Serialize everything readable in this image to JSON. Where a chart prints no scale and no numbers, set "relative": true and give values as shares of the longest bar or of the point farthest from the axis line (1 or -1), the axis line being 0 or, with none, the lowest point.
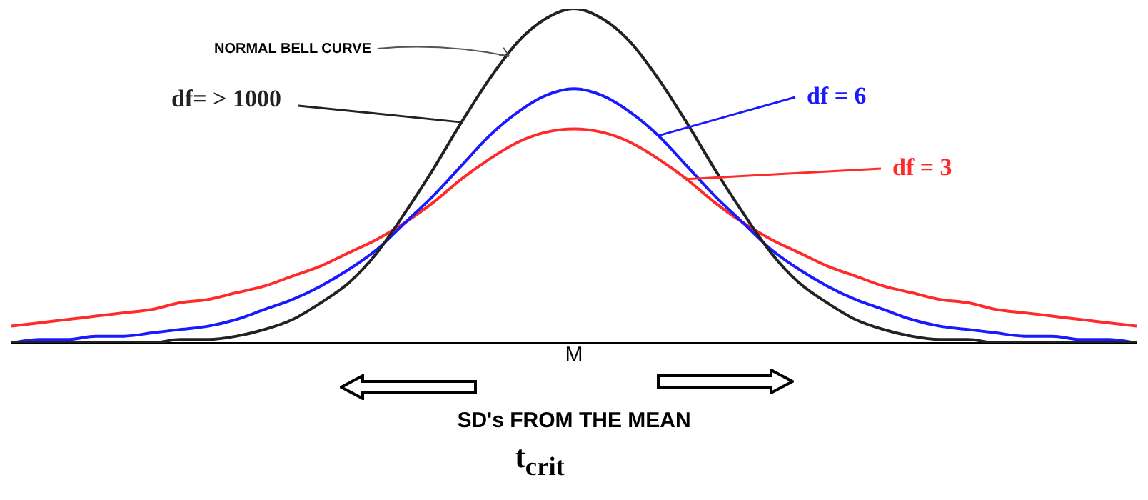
{
  "chart_data": {
    "type": "line",
    "relative": true,
    "xlabel": "SD's FROM THE MEAN",
    "categories": [
      null,
      null,
      null,
      null,
      null,
      null,
      null,
      null,
      null,
      null,
      null,
      null,
      null,
      null,
      null,
      null,
      null,
      null,
      null,
      null,
      null,
      null,
      null,
      null,
      null,
      null,
      null,
      null,
      null,
      null,
      null,
      null,
      null,
      null,
      null,
      null,
      null,
      null,
      null,
      null,
      null
    ],
    "series": [
      {
        "name": "df= > 1000",
        "color": "#222222",
        "values": [
          0,
          0,
          0,
          0,
          0,
          0,
          0.01,
          0.01,
          0.02,
          0.04,
          0.07,
          0.12,
          0.18,
          0.27,
          0.39,
          0.52,
          0.66,
          0.79,
          0.9,
          0.97,
          1,
          0.97,
          0.9,
          0.79,
          0.66,
          0.52,
          0.39,
          0.27,
          0.18,
          0.12,
          0.07,
          0.04,
          0.02,
          0.01,
          0.01,
          0,
          0,
          0,
          0,
          0,
          0
        ]
      },
      {
        "name": "df = 6",
        "color": "#1a1aff",
        "values": [
          0,
          0.01,
          0.01,
          0.02,
          0.02,
          0.03,
          0.04,
          0.05,
          0.07,
          0.1,
          0.13,
          0.17,
          0.22,
          0.28,
          0.36,
          0.44,
          0.53,
          0.62,
          0.69,
          0.74,
          0.76,
          0.74,
          0.69,
          0.62,
          0.53,
          0.44,
          0.36,
          0.28,
          0.22,
          0.17,
          0.13,
          0.1,
          0.07,
          0.05,
          0.04,
          0.03,
          0.02,
          0.02,
          0.01,
          0.01,
          0
        ]
      },
      {
        "name": "df = 3",
        "color": "#ff2a2a",
        "values": [
          0.05,
          0.06,
          0.07,
          0.08,
          0.09,
          0.1,
          0.12,
          0.13,
          0.15,
          0.17,
          0.2,
          0.23,
          0.27,
          0.31,
          0.36,
          0.42,
          0.49,
          0.55,
          0.6,
          0.63,
          0.64,
          0.63,
          0.6,
          0.55,
          0.49,
          0.42,
          0.36,
          0.31,
          0.27,
          0.23,
          0.2,
          0.17,
          0.15,
          0.13,
          0.12,
          0.1,
          0.09,
          0.08,
          0.07,
          0.06,
          0.05
        ]
      }
    ],
    "annotations": [
      "NORMAL BELL CURVE",
      "M",
      "t$_{crit}$"
    ],
    "legend": false,
    "grid": false,
    "marker": "none",
    "line_style": "solid"
  }
}
